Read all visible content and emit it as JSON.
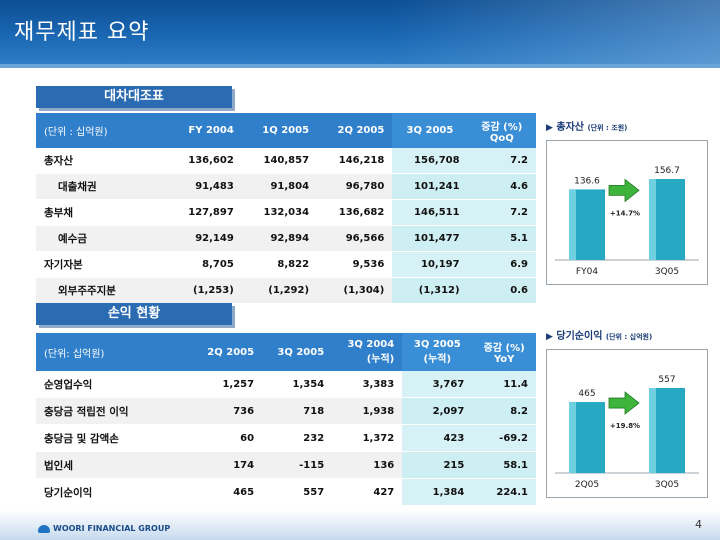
{
  "title": "재무제표 요약",
  "bs_section": "대차대조표",
  "pl_section": "손익 현황",
  "bs_table": {
    "unit": "(단위 : 십억원)",
    "headers": [
      "FY 2004",
      "1Q 2005",
      "2Q 2005",
      "3Q 2005"
    ],
    "change_header": [
      "증감 (%)",
      "QoQ"
    ],
    "rows": [
      {
        "label": "총자산",
        "values": [
          "136,602",
          "140,857",
          "146,218",
          "156,708",
          "7.2"
        ]
      },
      {
        "label": "대출채권",
        "values": [
          "91,483",
          "91,804",
          "96,780",
          "101,241",
          "4.6"
        ]
      },
      {
        "label": "총부채",
        "values": [
          "127,897",
          "132,034",
          "136,682",
          "146,511",
          "7.2"
        ]
      },
      {
        "label": "예수금",
        "values": [
          "92,149",
          "92,894",
          "96,566",
          "101,477",
          "5.1"
        ]
      },
      {
        "label": "자기자본",
        "values": [
          "8,705",
          "8,822",
          "9,536",
          "10,197",
          "6.9"
        ]
      },
      {
        "label": "외부주주지분",
        "values": [
          "(1,253)",
          "(1,292)",
          "(1,304)",
          "(1,312)",
          "0.6"
        ]
      }
    ]
  },
  "pl_table": {
    "unit": "(단위: 십억원)",
    "headers": [
      "2Q 2005",
      "3Q 2005"
    ],
    "cum_headers": [
      [
        "3Q 2004",
        "(누적)"
      ],
      [
        "3Q 2005",
        "(누적)"
      ]
    ],
    "change_header": [
      "증감 (%)",
      "YoY"
    ],
    "rows": [
      {
        "label": "순영업수익",
        "values": [
          "1,257",
          "1,354",
          "3,383",
          "3,767",
          "11.4"
        ]
      },
      {
        "label": "충당금 적립전 이익",
        "values": [
          "736",
          "718",
          "1,938",
          "2,097",
          "8.2"
        ]
      },
      {
        "label": "충당금 및 감액손",
        "values": [
          "60",
          "232",
          "1,372",
          "423",
          "-69.2"
        ]
      },
      {
        "label": "법인세",
        "values": [
          "174",
          "-115",
          "136",
          "215",
          "58.1"
        ]
      },
      {
        "label": "당기순이익",
        "values": [
          "465",
          "557",
          "427",
          "1,384",
          "224.1"
        ]
      }
    ]
  },
  "chart_data": [
    {
      "type": "bar",
      "title": "총자산",
      "unit": "(단위 : 조원)",
      "categories": [
        "FY04",
        "3Q05"
      ],
      "values": [
        136.6,
        156.7
      ],
      "value_labels": [
        "136.6",
        "156.7"
      ],
      "growth_label": "+14.7%",
      "bar_color": "#27a9c4"
    },
    {
      "type": "bar",
      "title": "당기순이익",
      "unit": "(단위 : 십억원)",
      "categories": [
        "2Q05",
        "3Q05"
      ],
      "values": [
        465,
        557
      ],
      "value_labels": [
        "465",
        "557"
      ],
      "growth_label": "+19.8%",
      "bar_color": "#27a9c4"
    }
  ],
  "footer": {
    "logo_text": "WOORI FINANCIAL GROUP",
    "page_number": "4"
  }
}
